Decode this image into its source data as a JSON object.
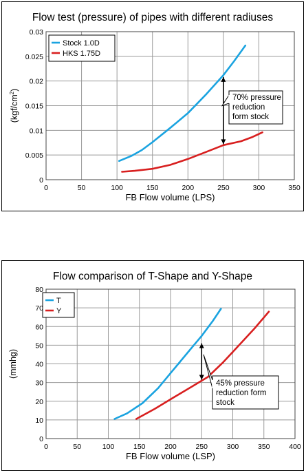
{
  "charts": [
    {
      "title": "Flow test (pressure) of pipes with different radiuses",
      "xlabel": "FB Flow volume (LPS)",
      "ylabel_main": "(kgf/cm",
      "ylabel_sup": "2",
      "ylabel_close": ")",
      "annotation_lines": [
        "70% pressure",
        "reduction",
        "form stock"
      ]
    },
    {
      "title": "Flow comparison of T-Shape and Y-Shape",
      "xlabel": "FB Flow volume (LSP)",
      "ylabel": "(mmhg)",
      "annotation_lines": [
        "45% pressure",
        "reduction form",
        "stock"
      ]
    }
  ],
  "chart_data": [
    {
      "type": "line",
      "title": "Flow test (pressure) of pipes with different radiuses",
      "xlabel": "FB Flow volume (LPS)",
      "ylabel": "(kgf/cm2)",
      "xlim": [
        0,
        350
      ],
      "ylim": [
        0,
        0.03
      ],
      "xticks": [
        0,
        50,
        100,
        150,
        200,
        250,
        300,
        350
      ],
      "yticks": [
        0,
        0.005,
        0.01,
        0.015,
        0.02,
        0.025,
        0.03
      ],
      "ytick_labels": [
        "0",
        "0.005",
        "0.01",
        "0.015",
        "0.02",
        "0.025",
        "0.03"
      ],
      "grid": true,
      "legend": "top-left",
      "series": [
        {
          "name": "Stock 1.0D",
          "color": "#1aa3e0",
          "x": [
            103,
            120,
            135,
            150,
            175,
            200,
            225,
            250,
            265,
            281
          ],
          "y": [
            0.0038,
            0.0048,
            0.006,
            0.0076,
            0.0105,
            0.0135,
            0.0172,
            0.0212,
            0.024,
            0.0272
          ]
        },
        {
          "name": "HKS 1.75D",
          "color": "#d81f1f",
          "x": [
            107,
            125,
            150,
            175,
            200,
            225,
            250,
            275,
            290,
            305
          ],
          "y": [
            0.0016,
            0.0018,
            0.0022,
            0.003,
            0.0042,
            0.0056,
            0.007,
            0.0078,
            0.0086,
            0.0096
          ]
        }
      ],
      "annotation": {
        "text": "70% pressure reduction form stock",
        "arrow_x": 250,
        "arrow_from": 0.0072,
        "arrow_to": 0.0208
      }
    },
    {
      "type": "line",
      "title": "Flow comparison of T-Shape and Y-Shape",
      "xlabel": "FB Flow volume (LSP)",
      "ylabel": "(mmhg)",
      "xlim": [
        0,
        400
      ],
      "ylim": [
        0,
        80
      ],
      "xticks": [
        0,
        50,
        100,
        150,
        200,
        250,
        300,
        350,
        400
      ],
      "yticks": [
        0,
        10,
        20,
        30,
        40,
        50,
        60,
        70,
        80
      ],
      "ytick_labels": [
        "0",
        "10",
        "20",
        "30",
        "40",
        "50",
        "60",
        "70",
        "80"
      ],
      "grid": true,
      "legend": "top-left",
      "series": [
        {
          "name": "T",
          "color": "#1aa3e0",
          "x": [
            110,
            130,
            155,
            180,
            205,
            230,
            250,
            268,
            281
          ],
          "y": [
            10.5,
            13.5,
            19,
            27,
            37,
            47,
            55,
            63,
            69.5
          ]
        },
        {
          "name": "Y",
          "color": "#d81f1f",
          "x": [
            145,
            175,
            205,
            235,
            260,
            285,
            310,
            335,
            358
          ],
          "y": [
            10.5,
            16,
            22,
            28,
            33,
            41,
            50,
            59,
            68
          ]
        }
      ],
      "annotation": {
        "text": "45% pressure reduction form stock",
        "arrow_x": 250,
        "arrow_from": 51,
        "arrow_to": 31.5
      }
    }
  ]
}
